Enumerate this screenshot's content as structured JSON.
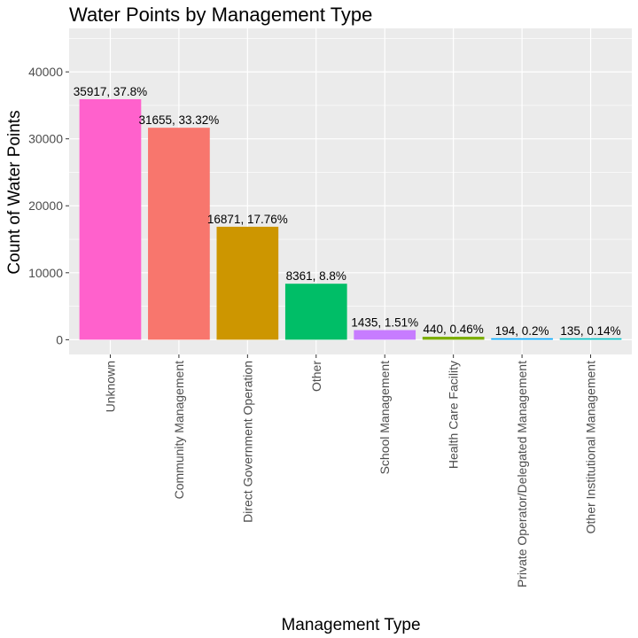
{
  "chart_data": {
    "type": "bar",
    "title": "Water Points by Management Type",
    "xlabel": "Management Type",
    "ylabel": "Count of Water Points",
    "ylim": [
      -2200,
      46500
    ],
    "yticks": [
      0,
      10000,
      20000,
      30000,
      40000
    ],
    "grid": true,
    "legend": "none",
    "categories": [
      "Unknown",
      "Community Management",
      "Direct Government Operation",
      "Other",
      "School Management",
      "Health Care Facility",
      "Private Operator/Delegated Management",
      "Other Institutional Management"
    ],
    "values": [
      35917,
      31655,
      16871,
      8361,
      1435,
      440,
      194,
      135
    ],
    "labels": [
      "35917, 37.8%",
      "31655, 33.32%",
      "16871, 17.76%",
      "8361, 8.8%",
      "1435, 1.51%",
      "440, 0.46%",
      "194, 0.2%",
      "135, 0.14%"
    ],
    "colors": [
      "#FF61CC",
      "#F8766D",
      "#CD9600",
      "#00BE67",
      "#C77CFF",
      "#7CAE00",
      "#00A9FF",
      "#00BFC4"
    ]
  },
  "style": {
    "panel_background": "#EBEBEB",
    "grid_color": "#FFFFFF"
  }
}
